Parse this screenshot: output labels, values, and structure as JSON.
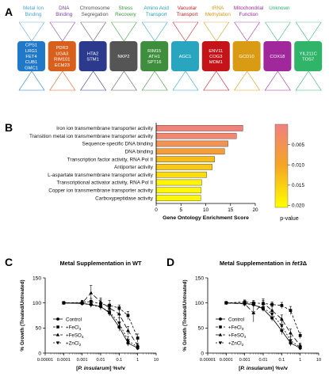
{
  "panel_a": {
    "label": "A",
    "categories": [
      {
        "title": [
          "Metal Ion",
          "Binding"
        ],
        "title_color": "#4aa3d8",
        "box_color": "#1f78c8",
        "genes": [
          "CPS1",
          "LRG1",
          "FET4",
          "CUB1",
          "GMC1"
        ]
      },
      {
        "title": [
          "DNA",
          "Binding"
        ],
        "title_color": "#7b3fa0",
        "box_color": "#d9601c",
        "genes": [
          "PDR3",
          "UGA3",
          "RIM101",
          "ECM23"
        ]
      },
      {
        "title": [
          "Chromosome",
          "Segregation"
        ],
        "title_color": "#555555",
        "box_color": "#2b3a8c",
        "genes": [
          "HTA2",
          "STM1"
        ]
      },
      {
        "title": [
          "Stress",
          "Recovery"
        ],
        "title_color": "#3a9a3a",
        "box_color": "#555555",
        "genes": [
          "NKP2"
        ]
      },
      {
        "title": [
          "Amino Acid",
          "Transport"
        ],
        "title_color": "#2aa0b8",
        "box_color": "#3e8e3e",
        "genes": [
          "RIM15",
          "ATH1",
          "SPT16"
        ]
      },
      {
        "title": [
          "Vacuolar",
          "Transport"
        ],
        "title_color": "#c81e1e",
        "box_color": "#2aa5c0",
        "genes": [
          "AGC1"
        ]
      },
      {
        "title": [
          "tRNA",
          "Methylation"
        ],
        "title_color": "#d49a1a",
        "box_color": "#c4141a",
        "genes": [
          "ENV11",
          "COG3",
          "MDM1"
        ]
      },
      {
        "title": [
          "Mitochondrial",
          "Function"
        ],
        "title_color": "#a0289a",
        "box_color": "#d99a14",
        "genes": [
          "GCD10"
        ]
      },
      {
        "title": [
          "Unknown"
        ],
        "title_color": "#2fb46a",
        "box_color": "#a0289a",
        "genes": [
          "COX18"
        ]
      },
      {
        "title": [],
        "title_color": "#2fb46a",
        "box_color": "#2fb46a",
        "genes": [
          "YIL211C",
          "TOS7"
        ]
      }
    ]
  },
  "panel_b": {
    "label": "B",
    "chart_data": {
      "type": "bar",
      "orientation": "horizontal",
      "categories": [
        "Iron ion transmembrane transporter activity",
        "Transition metal ion transmembrane transporter activity",
        "Sequence-specific DNA binding",
        "DNA binding",
        "Transcription factor activity, RNA Pol II",
        "Antiporter activity",
        "L-aspartate transmembrane transporter activity",
        "Transcriptional activator activity, RNA Pol II",
        "Copper ion transmembrane transporter activity",
        "Carboxypeptidase activity"
      ],
      "values": [
        17.5,
        16.2,
        14.5,
        13.8,
        11.8,
        11.3,
        10.2,
        9.2,
        9.1,
        9.0
      ],
      "pvalues": [
        0.0008,
        0.0018,
        0.0052,
        0.0078,
        0.0128,
        0.0142,
        0.0165,
        0.0192,
        0.0195,
        0.0198
      ],
      "xlabel": "Gene  Ontology  Enrichment  Score",
      "xlim": [
        0,
        20
      ],
      "xticks": [
        "0",
        "5",
        "10",
        "15",
        "20"
      ],
      "colorbar": {
        "label": "p-value",
        "ticks": [
          "0.005",
          "0.010",
          "0.015",
          "0.020"
        ],
        "tick_values": [
          0.005,
          0.01,
          0.015,
          0.02
        ],
        "range": [
          0.0,
          0.0205
        ],
        "color_low": "#f08080",
        "color_mid": "#f5a623",
        "color_high": "#ffff00"
      }
    }
  },
  "panel_c": {
    "label": "C",
    "chart_data": {
      "type": "line",
      "title": "Metal Supplementation in WT",
      "ylabel": "% Growth (Treated/Untreated)",
      "xlabel_italic": "P. insularum",
      "xlabel_pre": "[",
      "xlabel_post": "] %v/v",
      "xscale": "log",
      "xlim": [
        1e-05,
        10
      ],
      "ylim": [
        0,
        150
      ],
      "xticks": [
        "0.00001",
        "0.0001",
        "0.001",
        "0.01",
        "0.1",
        "1",
        "10"
      ],
      "yticks": [
        "0",
        "50",
        "100",
        "150"
      ],
      "legend": [
        "Control",
        "+FeCl3",
        "+FeSO4",
        "+ZnCl2"
      ],
      "series": [
        {
          "name": "Control",
          "marker": "circle",
          "dash": "",
          "x": [
            0.0001,
            0.001,
            0.003,
            0.01,
            0.03,
            0.1,
            0.3,
            1
          ],
          "y": [
            100,
            99,
            97,
            93,
            80,
            52,
            20,
            10
          ],
          "err": [
            3,
            3,
            4,
            5,
            6,
            8,
            6,
            4
          ]
        },
        {
          "name": "+FeCl3",
          "marker": "square",
          "dash": "3,2",
          "x": [
            0.0001,
            0.001,
            0.003,
            0.01,
            0.03,
            0.1,
            0.3,
            1
          ],
          "y": [
            100,
            101,
            103,
            98,
            95,
            90,
            75,
            30
          ],
          "err": [
            3,
            4,
            6,
            8,
            10,
            6,
            8,
            8
          ]
        },
        {
          "name": "+FeSO4",
          "marker": "triangle-up",
          "dash": "6,3",
          "x": [
            0.0001,
            0.001,
            0.003,
            0.01,
            0.03,
            0.1,
            0.3,
            1
          ],
          "y": [
            100,
            100,
            120,
            102,
            90,
            78,
            45,
            15
          ],
          "err": [
            3,
            5,
            15,
            8,
            8,
            8,
            8,
            5
          ]
        },
        {
          "name": "+ZnCl2",
          "marker": "triangle-down",
          "dash": "2,2",
          "x": [
            0.0001,
            0.001,
            0.003,
            0.01,
            0.03,
            0.1,
            0.3,
            1
          ],
          "y": [
            100,
            99,
            96,
            92,
            82,
            60,
            25,
            12
          ],
          "err": [
            3,
            4,
            5,
            6,
            8,
            10,
            8,
            5
          ]
        }
      ]
    }
  },
  "panel_d": {
    "label": "D",
    "chart_data": {
      "type": "line",
      "title_pre": "Metal Supplementation in ",
      "title_italic": "fet3",
      "title_post": "Δ",
      "ylabel": "% Growth (Treated/Untreated)",
      "xlabel_italic": "P. insularum",
      "xlabel_pre": "[",
      "xlabel_post": "] %v/v",
      "xscale": "log",
      "xlim": [
        1e-05,
        10
      ],
      "ylim": [
        0,
        150
      ],
      "xticks": [
        "0.00001",
        "0.0001",
        "0.001",
        "0.01",
        "0.1",
        "1",
        "10"
      ],
      "yticks": [
        "0",
        "50",
        "100",
        "150"
      ],
      "legend": [
        "Control",
        "+FeCl3",
        "+FeSO4",
        "+ZnCl2"
      ],
      "series": [
        {
          "name": "Control",
          "marker": "circle",
          "dash": "",
          "x": [
            0.0001,
            0.001,
            0.003,
            0.01,
            0.03,
            0.1,
            0.3,
            1
          ],
          "y": [
            100,
            99,
            97,
            88,
            70,
            45,
            20,
            10
          ],
          "err": [
            3,
            3,
            4,
            5,
            6,
            8,
            6,
            4
          ]
        },
        {
          "name": "+FeCl3",
          "marker": "square",
          "dash": "3,2",
          "x": [
            0.0001,
            0.001,
            0.003,
            0.01,
            0.03,
            0.1,
            0.3,
            1
          ],
          "y": [
            100,
            102,
            100,
            99,
            97,
            95,
            85,
            35
          ],
          "err": [
            3,
            4,
            5,
            6,
            5,
            6,
            8,
            6
          ]
        },
        {
          "name": "+FeSO4",
          "marker": "triangle-up",
          "dash": "6,3",
          "x": [
            0.0001,
            0.001,
            0.003,
            0.01,
            0.03,
            0.1,
            0.3,
            1
          ],
          "y": [
            100,
            98,
            80,
            100,
            85,
            68,
            40,
            15
          ],
          "err": [
            3,
            5,
            18,
            8,
            8,
            8,
            8,
            5
          ]
        },
        {
          "name": "+ZnCl2",
          "marker": "triangle-down",
          "dash": "2,2",
          "x": [
            0.0001,
            0.001,
            0.003,
            0.01,
            0.03,
            0.1,
            0.3,
            1
          ],
          "y": [
            100,
            99,
            96,
            90,
            78,
            55,
            25,
            12
          ],
          "err": [
            3,
            4,
            5,
            6,
            8,
            10,
            8,
            5
          ]
        }
      ]
    }
  }
}
